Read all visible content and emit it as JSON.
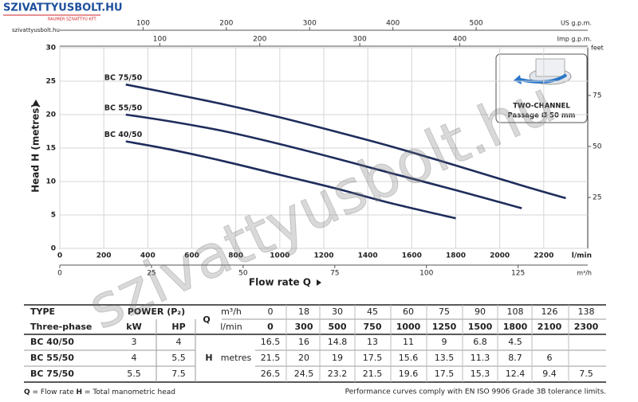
{
  "header": {
    "logo": "SZIVATTYUSBOLT.HU",
    "logo_sub": "RAUMER SZIVATTYÚ KFT.",
    "site": "szivattyusbolt.hu"
  },
  "watermark": "szivattyusbolt.hu",
  "chart_data": {
    "type": "line",
    "y_label": "Head H (metres)",
    "x_label": "Flow rate Q",
    "x_unit": "l/min",
    "xlim": [
      0,
      2400
    ],
    "xticks": [
      0,
      200,
      400,
      600,
      800,
      1000,
      1200,
      1400,
      1600,
      1800,
      2000,
      2200
    ],
    "ylim": [
      0,
      30
    ],
    "yticks": [
      0,
      5,
      10,
      15,
      20,
      25,
      30
    ],
    "grid": true,
    "series": [
      {
        "name": "BC 75/50",
        "color": "#1f2d5c",
        "x": [
          300,
          500,
          750,
          1000,
          1250,
          1500,
          1800,
          2100,
          2300
        ],
        "values": [
          24.5,
          23.2,
          21.5,
          19.6,
          17.5,
          15.3,
          12.4,
          9.4,
          7.5
        ]
      },
      {
        "name": "BC 55/50",
        "color": "#1f2d5c",
        "x": [
          300,
          500,
          750,
          1000,
          1250,
          1500,
          1800,
          2100
        ],
        "values": [
          20,
          19,
          17.5,
          15.6,
          13.5,
          11.3,
          8.7,
          6
        ]
      },
      {
        "name": "BC 40/50",
        "color": "#1f2d5c",
        "x": [
          300,
          500,
          750,
          1000,
          1250,
          1500,
          1800
        ],
        "values": [
          16,
          14.8,
          13,
          11,
          9,
          6.8,
          4.5
        ]
      }
    ],
    "secondary_axes": [
      {
        "label": "US g.p.m.",
        "position": "top",
        "lim": [
          0,
          634
        ],
        "ticks": [
          100,
          200,
          300,
          400,
          500
        ]
      },
      {
        "label": "Imp g.p.m.",
        "position": "top",
        "lim": [
          0,
          528
        ],
        "ticks": [
          100,
          200,
          300,
          400
        ]
      },
      {
        "label": "m³/h",
        "position": "bottom",
        "lim": [
          0,
          144
        ],
        "ticks": [
          0,
          25,
          50,
          75,
          100,
          125
        ]
      },
      {
        "label": "feet",
        "position": "right",
        "lim": [
          0,
          98.4
        ],
        "ticks": [
          25,
          50,
          75
        ]
      }
    ],
    "inset": {
      "title": "TWO-CHANNEL",
      "text": "Passage Ø 50 mm"
    }
  },
  "table": {
    "type_head": "TYPE",
    "phase": "Three-phase",
    "power_head": "POWER (P₂)",
    "kw_head": "kW",
    "hp_head": "HP",
    "q_symbol": "Q",
    "q_unit1": "m³/h",
    "q_unit2": "l/min",
    "h_symbol": "H",
    "h_unit": "metres",
    "q_m3h": [
      0,
      18,
      30,
      45,
      60,
      75,
      90,
      108,
      126,
      138
    ],
    "q_lmin": [
      0,
      300,
      500,
      750,
      1000,
      1250,
      1500,
      1800,
      2100,
      2300
    ],
    "rows": [
      {
        "type": "BC 40/50",
        "kw": 3,
        "hp": 4,
        "values": [
          16.5,
          16,
          14.8,
          13,
          11,
          9,
          6.8,
          4.5,
          null,
          null
        ]
      },
      {
        "type": "BC 55/50",
        "kw": 4,
        "hp": 5.5,
        "values": [
          21.5,
          20,
          19,
          17.5,
          15.6,
          13.5,
          11.3,
          8.7,
          6,
          null
        ]
      },
      {
        "type": "BC 75/50",
        "kw": 5.5,
        "hp": 7.5,
        "values": [
          26.5,
          24.5,
          23.2,
          21.5,
          19.6,
          17.5,
          15.3,
          12.4,
          9.4,
          7.5
        ]
      }
    ]
  },
  "footer": {
    "q_symbol": "Q",
    "q_text": "= Flow rate",
    "h_symbol": "H",
    "h_text": "= Total manometric head",
    "note": "Performance curves comply with EN ISO 9906 Grade 3B tolerance limits."
  }
}
